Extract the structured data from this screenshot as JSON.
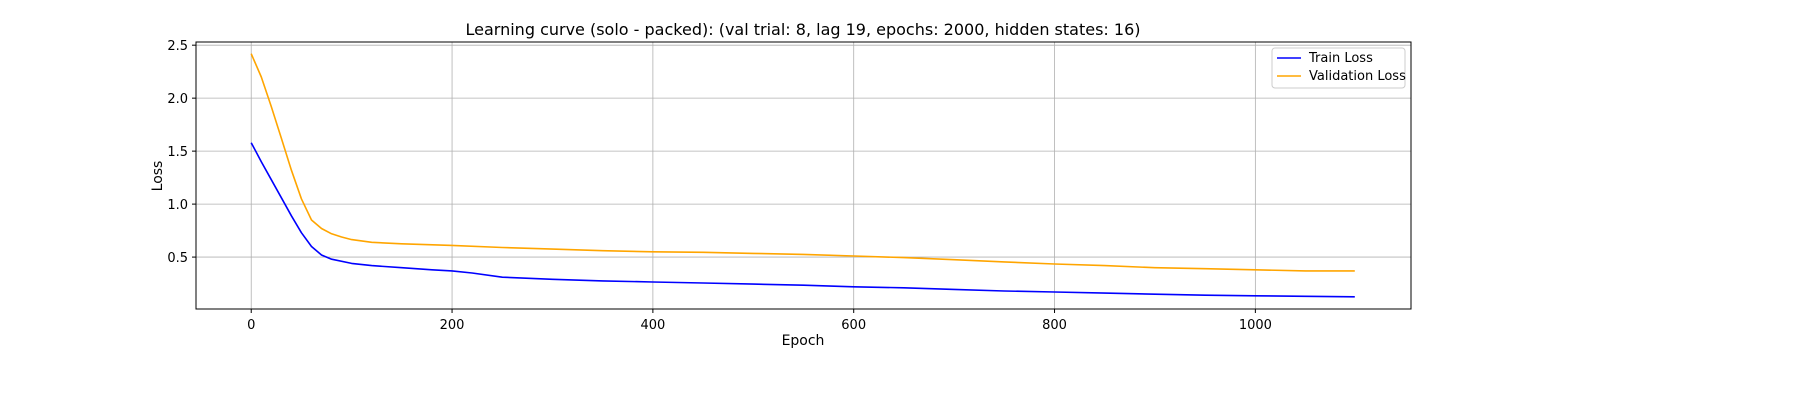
{
  "chart_data": {
    "type": "line",
    "title": "Learning curve (solo - packed): (val trial: 8, lag 19, epochs: 2000, hidden states: 16)",
    "xlabel": "Epoch",
    "ylabel": "Loss",
    "xlim": [
      -55,
      1155
    ],
    "ylim": [
      0.01,
      2.53
    ],
    "xticks": [
      0,
      200,
      400,
      600,
      800,
      1000
    ],
    "yticks": [
      0.5,
      1.0,
      1.5,
      2.0,
      2.5
    ],
    "xtick_labels": [
      "0",
      "200",
      "400",
      "600",
      "800",
      "1000"
    ],
    "ytick_labels": [
      "0.5",
      "1.0",
      "1.5",
      "2.0",
      "2.5"
    ],
    "grid": true,
    "legend_position": "top-right",
    "series": [
      {
        "name": "Train Loss",
        "color": "#0000ff",
        "x": [
          0,
          10,
          20,
          30,
          40,
          50,
          60,
          70,
          80,
          100,
          120,
          150,
          180,
          200,
          220,
          250,
          300,
          350,
          400,
          450,
          500,
          550,
          600,
          650,
          700,
          750,
          800,
          850,
          900,
          950,
          1000,
          1050,
          1099
        ],
        "y": [
          1.58,
          1.4,
          1.23,
          1.06,
          0.89,
          0.73,
          0.6,
          0.52,
          0.48,
          0.44,
          0.42,
          0.4,
          0.38,
          0.37,
          0.35,
          0.31,
          0.29,
          0.275,
          0.265,
          0.255,
          0.245,
          0.235,
          0.22,
          0.21,
          0.195,
          0.18,
          0.17,
          0.16,
          0.15,
          0.14,
          0.135,
          0.13,
          0.125
        ]
      },
      {
        "name": "Validation Loss",
        "color": "#ffa500",
        "x": [
          0,
          10,
          20,
          30,
          40,
          50,
          60,
          70,
          80,
          90,
          100,
          120,
          150,
          200,
          250,
          300,
          350,
          400,
          450,
          500,
          550,
          600,
          650,
          700,
          750,
          800,
          850,
          900,
          950,
          1000,
          1050,
          1099
        ],
        "y": [
          2.42,
          2.2,
          1.92,
          1.62,
          1.32,
          1.05,
          0.85,
          0.77,
          0.72,
          0.69,
          0.665,
          0.64,
          0.625,
          0.61,
          0.59,
          0.575,
          0.56,
          0.55,
          0.545,
          0.535,
          0.525,
          0.51,
          0.495,
          0.475,
          0.455,
          0.435,
          0.42,
          0.4,
          0.39,
          0.38,
          0.37,
          0.37
        ]
      }
    ]
  }
}
